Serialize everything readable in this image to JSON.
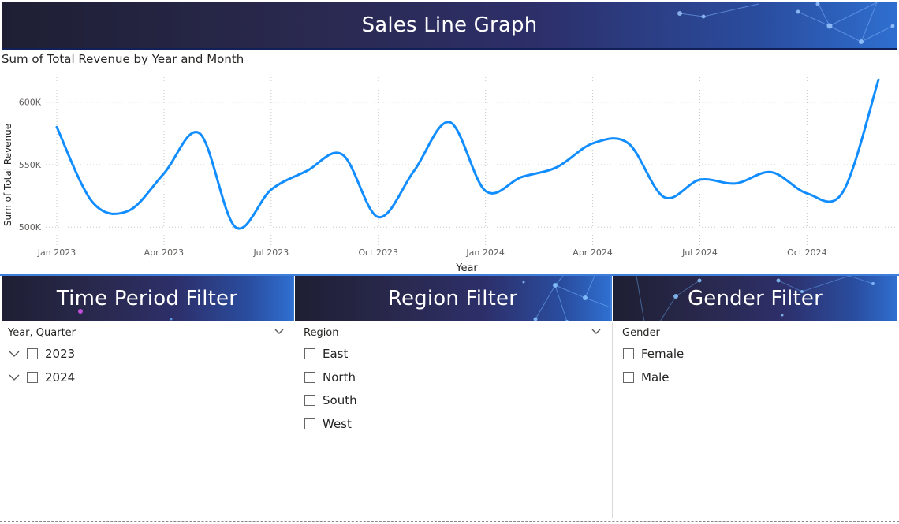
{
  "header": {
    "title": "Sales Line Graph"
  },
  "chart": {
    "subtitle": "Sum of Total Revenue by Year and Month"
  },
  "chart_data": {
    "type": "line",
    "title": "Sum of Total Revenue by Year and Month",
    "xlabel": "Year",
    "ylabel": "Sum of Total Revenue",
    "x": [
      "2023-01",
      "2023-02",
      "2023-03",
      "2023-04",
      "2023-05",
      "2023-06",
      "2023-07",
      "2023-08",
      "2023-09",
      "2023-10",
      "2023-11",
      "2023-12",
      "2024-01",
      "2024-02",
      "2024-03",
      "2024-04",
      "2024-05",
      "2024-06",
      "2024-07",
      "2024-08",
      "2024-09",
      "2024-10",
      "2024-11",
      "2024-12"
    ],
    "values": [
      580000,
      520000,
      513000,
      543000,
      575000,
      500000,
      530000,
      545000,
      558000,
      508000,
      545000,
      584000,
      529000,
      540000,
      548000,
      567000,
      567000,
      524000,
      538000,
      535000,
      544000,
      527000,
      528000,
      618000
    ],
    "x_ticks": [
      "Jan 2023",
      "Apr 2023",
      "Jul 2023",
      "Oct 2023",
      "Jan 2024",
      "Apr 2024",
      "Jul 2024",
      "Oct 2024"
    ],
    "y_ticks": [
      {
        "value": 500000,
        "label": "500K"
      },
      {
        "value": 550000,
        "label": "550K"
      },
      {
        "value": 600000,
        "label": "600K"
      }
    ],
    "ylim": [
      485000,
      620000
    ],
    "grid": true,
    "line_color": "#118DFF"
  },
  "filters": {
    "time": {
      "title": "Time Period Filter",
      "header": "Year, Quarter",
      "items": [
        {
          "label": "2023"
        },
        {
          "label": "2024"
        }
      ]
    },
    "region": {
      "title": "Region Filter",
      "header": "Region",
      "items": [
        {
          "label": "East"
        },
        {
          "label": "North"
        },
        {
          "label": "South"
        },
        {
          "label": "West"
        }
      ]
    },
    "gender": {
      "title": "Gender Filter",
      "header": "Gender",
      "items": [
        {
          "label": "Female"
        },
        {
          "label": "Male"
        }
      ]
    }
  },
  "icons": {
    "expand": "chevron-down-icon",
    "dropdown": "chevron-down-icon",
    "checkbox": "checkbox-unchecked-icon"
  }
}
